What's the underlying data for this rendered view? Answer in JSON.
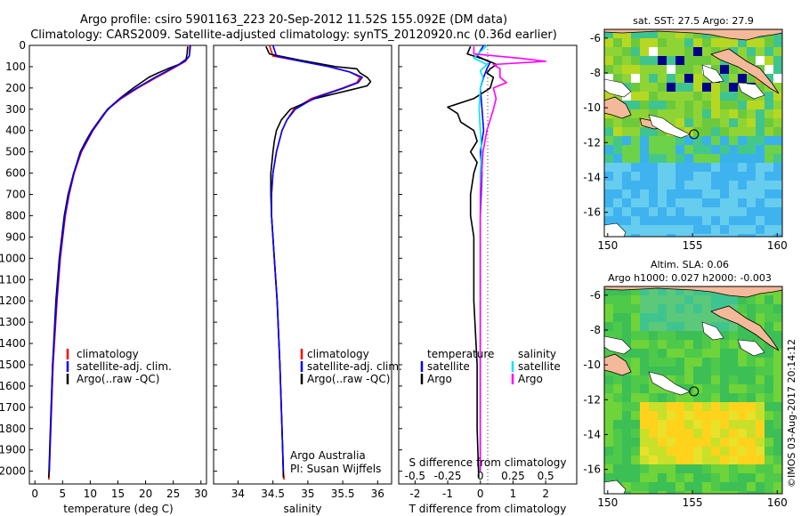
{
  "header": {
    "line1": "Argo profile: csiro 5901163_223 20-Sep-2012 11.52S 155.092E (DM data)",
    "line2": "Climatology: CARS2009. Satellite-adjusted climatology: synTS_20120920.nc (0.36d earlier)"
  },
  "colors": {
    "climatology": "#ff0000",
    "satellite": "#0000ff",
    "argo": "#000000",
    "s_satellite": "#00e5ee",
    "s_argo": "#ff00ff"
  },
  "chart_data": [
    {
      "type": "line",
      "id": "temp",
      "xlabel": "temperature (deg C)",
      "ylabel": "",
      "xlim": [
        -1,
        31
      ],
      "ylim": [
        0,
        2060
      ],
      "xticks": [
        0,
        5,
        10,
        15,
        20,
        25,
        30
      ],
      "yticks": [
        0,
        100,
        200,
        300,
        400,
        500,
        600,
        700,
        800,
        900,
        1000,
        1100,
        1200,
        1300,
        1400,
        1500,
        1600,
        1700,
        1800,
        1900,
        2000
      ],
      "legend": [
        "climatology",
        "satellite-adj. clim.",
        "Argo(..raw -QC)"
      ],
      "legend_position": "lower-center",
      "series": [
        {
          "name": "climatology",
          "depth": [
            0,
            50,
            75,
            100,
            125,
            150,
            200,
            250,
            300,
            400,
            500,
            600,
            700,
            800,
            1000,
            1200,
            1500,
            2000,
            2040
          ],
          "values": [
            28.0,
            27.9,
            27.2,
            25.5,
            23.8,
            22.0,
            18.6,
            15.6,
            13.2,
            10.5,
            8.4,
            7.1,
            6.2,
            5.5,
            4.6,
            4.0,
            3.3,
            2.6,
            2.5
          ]
        },
        {
          "name": "satellite-adj. clim.",
          "depth": [
            0,
            50,
            75,
            100,
            125,
            150,
            200,
            250,
            300,
            400,
            500,
            600,
            700,
            800,
            1000,
            1200,
            1500,
            2000
          ],
          "values": [
            28.1,
            27.9,
            27.0,
            25.3,
            23.5,
            21.7,
            18.4,
            15.4,
            13.1,
            10.4,
            8.3,
            7.0,
            6.1,
            5.4,
            4.5,
            3.9,
            3.2,
            2.6
          ]
        },
        {
          "name": "Argo(..raw -QC)",
          "depth": [
            5,
            40,
            65,
            90,
            110,
            130,
            150,
            200,
            250,
            280,
            320,
            400,
            450,
            500,
            600,
            700,
            800,
            1000,
            1200,
            1500,
            1800,
            2030
          ],
          "values": [
            27.6,
            27.5,
            27.3,
            26.0,
            24.0,
            22.2,
            20.6,
            17.8,
            15.3,
            14.0,
            12.5,
            10.3,
            9.2,
            8.2,
            7.0,
            6.0,
            5.3,
            4.4,
            3.8,
            3.2,
            2.8,
            2.5
          ]
        }
      ]
    },
    {
      "type": "line",
      "id": "sal",
      "xlabel": "salinity",
      "xlim": [
        33.65,
        36.2
      ],
      "ylim": [
        0,
        2060
      ],
      "xticks": [
        34,
        34.5,
        35,
        35.5,
        36
      ],
      "legend": [
        "climatology",
        "satellite-adj. clim.",
        "Argo(..raw -QC)"
      ],
      "legend_position": "lower-center",
      "annotation": [
        "Argo Australia",
        "PI: Susan Wijffels"
      ],
      "series": [
        {
          "name": "climatology",
          "depth": [
            0,
            50,
            75,
            100,
            125,
            150,
            175,
            200,
            250,
            300,
            350,
            400,
            500,
            600,
            700,
            800,
            1000,
            1200,
            1500,
            2000,
            2040
          ],
          "values": [
            34.45,
            34.5,
            34.9,
            35.3,
            35.6,
            35.75,
            35.7,
            35.5,
            35.05,
            34.8,
            34.7,
            34.63,
            34.55,
            34.5,
            34.48,
            34.48,
            34.52,
            34.56,
            34.6,
            34.65,
            34.66
          ]
        },
        {
          "name": "satellite-adj. clim.",
          "depth": [
            0,
            50,
            75,
            100,
            125,
            150,
            175,
            200,
            250,
            300,
            350,
            400,
            500,
            600,
            700,
            800,
            1000,
            1200,
            1500,
            2000
          ],
          "values": [
            34.5,
            34.55,
            34.9,
            35.3,
            35.6,
            35.78,
            35.72,
            35.52,
            35.08,
            34.82,
            34.7,
            34.63,
            34.55,
            34.5,
            34.48,
            34.48,
            34.52,
            34.56,
            34.6,
            34.65
          ]
        },
        {
          "name": "Argo(..raw -QC)",
          "depth": [
            5,
            40,
            70,
            100,
            110,
            130,
            150,
            170,
            190,
            210,
            250,
            300,
            350,
            400,
            450,
            500,
            600,
            700,
            800,
            1000,
            1200,
            1500,
            1800,
            2030
          ],
          "values": [
            34.4,
            34.45,
            34.9,
            35.4,
            35.7,
            35.75,
            35.85,
            35.9,
            35.85,
            35.6,
            35.1,
            34.75,
            34.62,
            34.55,
            34.52,
            34.5,
            34.47,
            34.47,
            34.48,
            34.52,
            34.56,
            34.6,
            34.63,
            34.65
          ]
        }
      ]
    },
    {
      "type": "line",
      "id": "diff",
      "xlabel": "T difference from climatology",
      "xlabel_top": "S difference from climatology",
      "xlim": [
        -2.5,
        2.95
      ],
      "ylim": [
        0,
        2060
      ],
      "xticks": [
        -2,
        -1,
        0,
        1,
        2
      ],
      "xticks_s": [
        -0.5,
        -0.25,
        0,
        0.25,
        0.5
      ],
      "legend_temperature_title": "temperature",
      "legend_salinity_title": "salinity",
      "legend": [
        "satellite",
        "Argo"
      ],
      "series": [
        {
          "name": "T satellite",
          "depth": [
            0,
            50,
            80,
            110,
            150,
            200,
            300,
            400,
            500,
            600,
            800,
            1000,
            1500,
            2000
          ],
          "values": [
            0.1,
            -0.1,
            0.3,
            0.2,
            0.1,
            0.0,
            0.05,
            0.1,
            0.0,
            0.05,
            0.0,
            0.0,
            0.0,
            0.0
          ]
        },
        {
          "name": "T Argo",
          "depth": [
            5,
            40,
            70,
            90,
            110,
            130,
            150,
            200,
            250,
            290,
            320,
            360,
            400,
            450,
            500,
            550,
            600,
            700,
            800,
            900,
            1000,
            1200,
            1500,
            1800,
            2030
          ],
          "values": [
            -0.3,
            -0.4,
            0.2,
            0.5,
            0.3,
            0.2,
            0.4,
            0.3,
            -0.2,
            -1.0,
            -0.7,
            -0.6,
            -0.2,
            -0.1,
            -0.3,
            -0.1,
            -0.2,
            -0.3,
            -0.3,
            -0.2,
            -0.2,
            -0.2,
            -0.1,
            -0.1,
            -0.05
          ]
        },
        {
          "name": "S satellite",
          "depth": [
            0,
            30,
            60,
            90,
            120,
            150,
            200,
            300,
            400,
            500,
            600,
            700,
            800,
            1000,
            1500,
            2000
          ],
          "values": [
            0.05,
            0.0,
            -0.05,
            0.05,
            0.0,
            0.02,
            0.0,
            -0.01,
            0.0,
            0.01,
            0.0,
            0.0,
            0.0,
            0.0,
            0.0,
            0.0
          ]
        },
        {
          "name": "S Argo",
          "depth": [
            5,
            40,
            60,
            75,
            90,
            110,
            130,
            150,
            175,
            200,
            250,
            300,
            400,
            500,
            600,
            700,
            800,
            1000,
            1200,
            1500,
            2000
          ],
          "values": [
            -0.05,
            -0.05,
            0.3,
            0.5,
            0.1,
            0.15,
            0.15,
            0.15,
            0.2,
            0.1,
            0.12,
            0.1,
            0.05,
            0.02,
            0.01,
            0.0,
            0.0,
            0.0,
            0.0,
            0.0,
            0.0
          ]
        }
      ]
    },
    {
      "type": "heatmap",
      "id": "sst",
      "title": "sat. SST: 27.5 Argo: 27.9",
      "xticks": [
        150,
        155,
        160
      ],
      "yticks": [
        -6,
        -8,
        -10,
        -12,
        -14,
        -16
      ],
      "xlim": [
        149.8,
        160.3
      ],
      "ylim": [
        -17.4,
        -5.5
      ],
      "marker": {
        "lon": 155.09,
        "lat": -11.52
      }
    },
    {
      "type": "heatmap",
      "id": "sla",
      "title_line1": "Altim. SLA: 0.06",
      "title_line2": "Argo h1000: 0.027 h2000: -0.003",
      "xticks": [
        150,
        155,
        160
      ],
      "yticks": [
        -6,
        -8,
        -10,
        -12,
        -14,
        -16
      ],
      "xlim": [
        149.8,
        160.3
      ],
      "ylim": [
        -17.4,
        -5.5
      ],
      "marker": {
        "lon": 155.09,
        "lat": -11.52
      }
    }
  ],
  "footer": {
    "credit": "©IMOS 03-Aug-2017 20:14:12"
  }
}
